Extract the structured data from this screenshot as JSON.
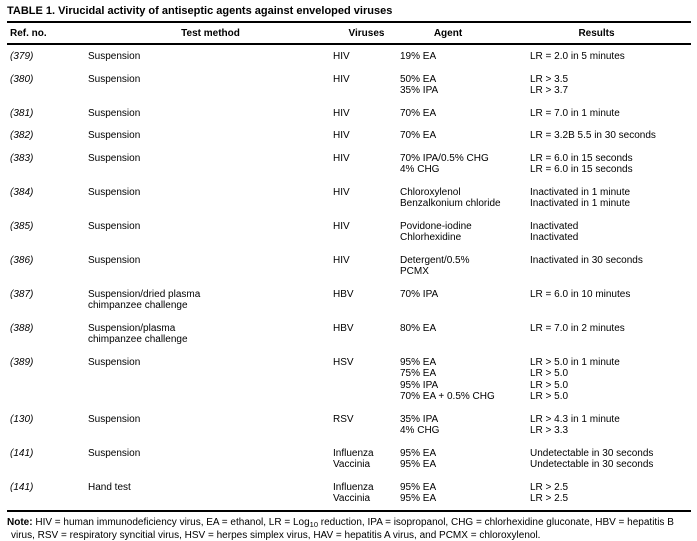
{
  "table": {
    "title": "TABLE 1. Virucidal activity of antiseptic agents against enveloped viruses",
    "columns": [
      "Ref. no.",
      "Test method",
      "Viruses",
      "Agent",
      "Results"
    ],
    "rows": [
      {
        "ref": "(379)",
        "method": [
          "Suspension"
        ],
        "viruses": [
          "HIV"
        ],
        "agents": [
          "19% EA"
        ],
        "results": [
          "LR = 2.0 in 5 minutes"
        ]
      },
      {
        "ref": "(380)",
        "method": [
          "Suspension"
        ],
        "viruses": [
          "HIV"
        ],
        "agents": [
          "50% EA",
          "35% IPA"
        ],
        "results": [
          "LR > 3.5",
          "LR > 3.7"
        ]
      },
      {
        "ref": "(381)",
        "method": [
          "Suspension"
        ],
        "viruses": [
          "HIV"
        ],
        "agents": [
          "70% EA"
        ],
        "results": [
          "LR = 7.0 in 1 minute"
        ]
      },
      {
        "ref": "(382)",
        "method": [
          "Suspension"
        ],
        "viruses": [
          "HIV"
        ],
        "agents": [
          "70% EA"
        ],
        "results": [
          "LR = 3.2B 5.5 in 30 seconds"
        ]
      },
      {
        "ref": "(383)",
        "method": [
          "Suspension"
        ],
        "viruses": [
          "HIV"
        ],
        "agents": [
          "70% IPA/0.5% CHG",
          "4% CHG"
        ],
        "results": [
          "LR = 6.0 in 15 seconds",
          "LR = 6.0 in 15 seconds"
        ]
      },
      {
        "ref": "(384)",
        "method": [
          "Suspension"
        ],
        "viruses": [
          "HIV"
        ],
        "agents": [
          "Chloroxylenol",
          "Benzalkonium chloride"
        ],
        "results": [
          "Inactivated in 1 minute",
          "Inactivated in 1 minute"
        ]
      },
      {
        "ref": "(385)",
        "method": [
          "Suspension"
        ],
        "viruses": [
          "HIV"
        ],
        "agents": [
          "Povidone-iodine",
          "Chlorhexidine"
        ],
        "results": [
          "Inactivated",
          "Inactivated"
        ]
      },
      {
        "ref": "(386)",
        "method": [
          "Suspension"
        ],
        "viruses": [
          "HIV"
        ],
        "agents": [
          "Detergent/0.5%",
          "PCMX"
        ],
        "results": [
          "Inactivated in 30 seconds"
        ]
      },
      {
        "ref": "(387)",
        "method": [
          "Suspension/dried plasma",
          "chimpanzee challenge"
        ],
        "viruses": [
          "HBV"
        ],
        "agents": [
          "70% IPA"
        ],
        "results": [
          "LR = 6.0 in 10 minutes"
        ]
      },
      {
        "ref": "(388)",
        "method": [
          "Suspension/plasma",
          "chimpanzee challenge"
        ],
        "viruses": [
          "HBV"
        ],
        "agents": [
          "80% EA"
        ],
        "results": [
          "LR = 7.0 in 2 minutes"
        ]
      },
      {
        "ref": "(389)",
        "method": [
          "Suspension"
        ],
        "viruses": [
          "HSV"
        ],
        "agents": [
          "95% EA",
          "75% EA",
          "95% IPA",
          "70% EA + 0.5% CHG"
        ],
        "results": [
          "LR > 5.0 in 1 minute",
          "LR > 5.0",
          "LR > 5.0",
          "LR > 5.0"
        ]
      },
      {
        "ref": "(130)",
        "method": [
          "Suspension"
        ],
        "viruses": [
          "RSV"
        ],
        "agents": [
          "35% IPA",
          "4% CHG"
        ],
        "results": [
          "LR > 4.3 in 1 minute",
          "LR > 3.3"
        ]
      },
      {
        "ref": "(141)",
        "method": [
          "Suspension"
        ],
        "viruses": [
          "Influenza",
          "Vaccinia"
        ],
        "agents": [
          "95% EA",
          "95% EA"
        ],
        "results": [
          "Undetectable in 30 seconds",
          "Undetectable in 30 seconds"
        ]
      },
      {
        "ref": "(141)",
        "method": [
          "Hand test"
        ],
        "viruses": [
          "Influenza",
          "Vaccinia"
        ],
        "agents": [
          "95% EA",
          "95% EA"
        ],
        "results": [
          "LR > 2.5",
          "LR > 2.5"
        ]
      }
    ],
    "note": {
      "label": "Note:",
      "line1_pre": " HIV = human immunodeficiency virus, EA = ethanol, LR = Log",
      "sub": "10",
      "line1_post": " reduction, IPA = isopropanol, CHG = chlorhexidine gluconate, HBV = hepatitis B",
      "line2": "virus, RSV = respiratory syncitial virus, HSV = herpes simplex virus, HAV = hepatitis A virus, and PCMX = chloroxylenol."
    }
  }
}
